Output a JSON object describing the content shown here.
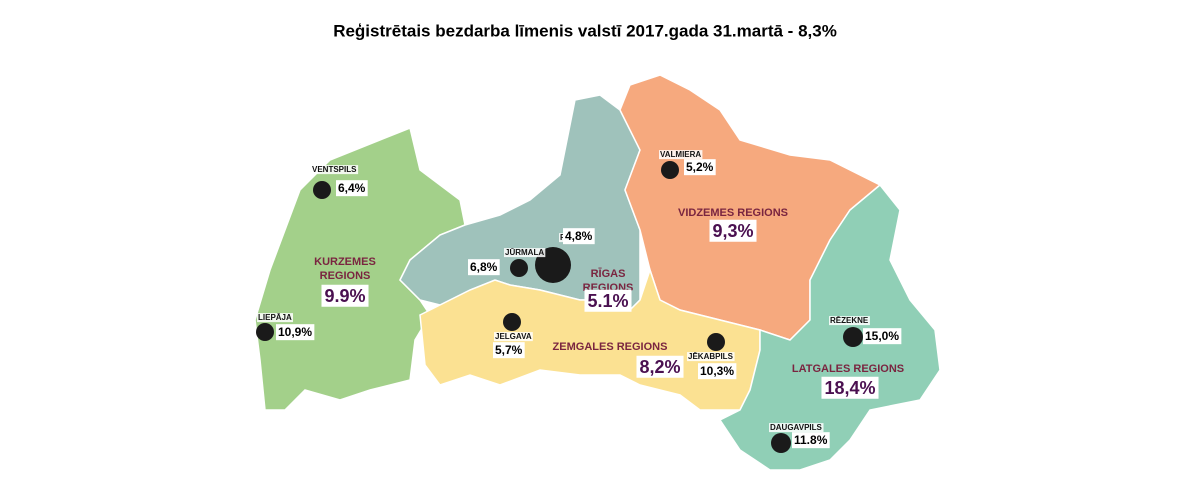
{
  "title": "Reģistrētais bezdarba līmenis valstī 2017.gada 31.martā - 8,3%",
  "regions": [
    {
      "name": [
        "KURZEMES",
        "REGIONS"
      ],
      "value": "9.9%"
    },
    {
      "name": [
        "RĪGAS",
        "REGIONS"
      ],
      "value": "5.1%"
    },
    {
      "name": [
        "VIDZEMES REGIONS"
      ],
      "value": "9,3%"
    },
    {
      "name": [
        "ZEMGALES REGIONS"
      ],
      "value": "8,2%"
    },
    {
      "name": [
        "LATGALES REGIONS"
      ],
      "value": "18,4%"
    }
  ],
  "cities": [
    {
      "name": "VENTSPILS",
      "value": "6,4%"
    },
    {
      "name": "RĪGA",
      "value": "4,8%"
    },
    {
      "name": "JŪRMALA",
      "value": "6,8%"
    },
    {
      "name": "VALMIERA",
      "value": "5,2%"
    },
    {
      "name": "LIEPĀJA",
      "value": "10,9%"
    },
    {
      "name": "JELGAVA",
      "value": "5,7%"
    },
    {
      "name": "JĒKABPILS",
      "value": "10,3%"
    },
    {
      "name": "RĒZEKNE",
      "value": "15,0%"
    },
    {
      "name": "DAUGAVPILS",
      "value": "11.8%"
    }
  ]
}
